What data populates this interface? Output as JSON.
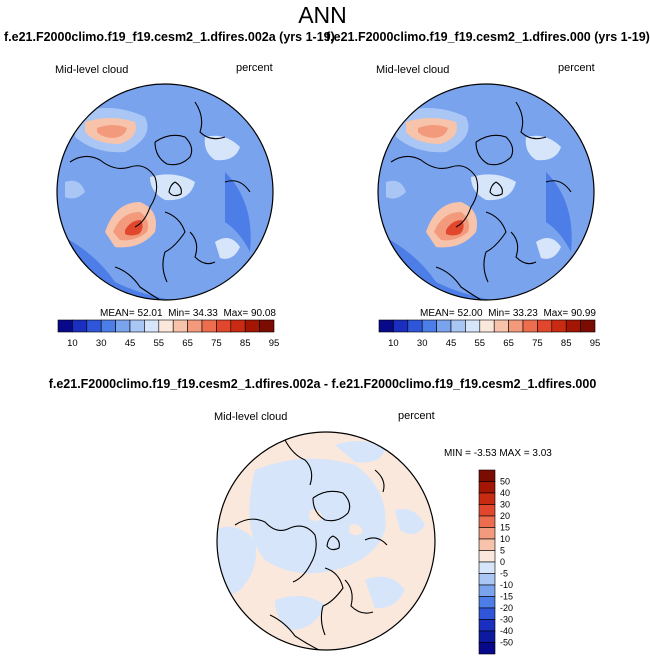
{
  "title": "ANN",
  "panels": [
    {
      "case_title": "f.e21.F2000climo.f19_f19.cesm2_1.dfires.002a (yrs 1-19)",
      "left_label": "Mid-level cloud",
      "right_label": "percent",
      "mean_label": "MEAN=",
      "mean": "52.01",
      "min_label": "Min=",
      "min": "34.33",
      "max_label": "Max=",
      "max": "90.08"
    },
    {
      "case_title": "f.e21.F2000climo.f19_f19.cesm2_1.dfires.000 (yrs 1-19)",
      "left_label": "Mid-level cloud",
      "right_label": "percent",
      "mean_label": "MEAN=",
      "mean": "52.00",
      "min_label": "Min=",
      "min": "33.23",
      "max_label": "Max=",
      "max": "90.99"
    }
  ],
  "colorbar": {
    "labels": [
      "10",
      "30",
      "45",
      "55",
      "65",
      "75",
      "85",
      "95"
    ],
    "colors": [
      "#08088a",
      "#1a2fc0",
      "#2f55d8",
      "#4d7de6",
      "#7aa3ee",
      "#a9c6f4",
      "#d6e5fa",
      "#fbe8dc",
      "#f7c3ab",
      "#f39a7c",
      "#ec6e4e",
      "#e0472c",
      "#c82a12",
      "#a41604",
      "#7a0c02"
    ]
  },
  "difference": {
    "title": "f.e21.F2000climo.f19_f19.cesm2_1.dfires.002a - f.e21.F2000climo.f19_f19.cesm2_1.dfires.000",
    "left_label": "Mid-level cloud",
    "right_label": "percent",
    "min_label": "MIN =",
    "min": "-3.53",
    "max_label": "MAX =",
    "max": "3.03",
    "colorbar_labels": [
      "50",
      "40",
      "30",
      "20",
      "15",
      "10",
      "5",
      "0",
      "-5",
      "-10",
      "-15",
      "-20",
      "-30",
      "-40",
      "-50"
    ],
    "colorbar_colors": [
      "#7a0c02",
      "#a41604",
      "#c82a12",
      "#e0472c",
      "#ec6e4e",
      "#f39a7c",
      "#f7c3ab",
      "#fbe8dc",
      "#d6e5fa",
      "#a9c6f4",
      "#7aa3ee",
      "#4d7de6",
      "#2f55d8",
      "#1a2fc0",
      "#0d1aa0",
      "#08088a"
    ]
  }
}
